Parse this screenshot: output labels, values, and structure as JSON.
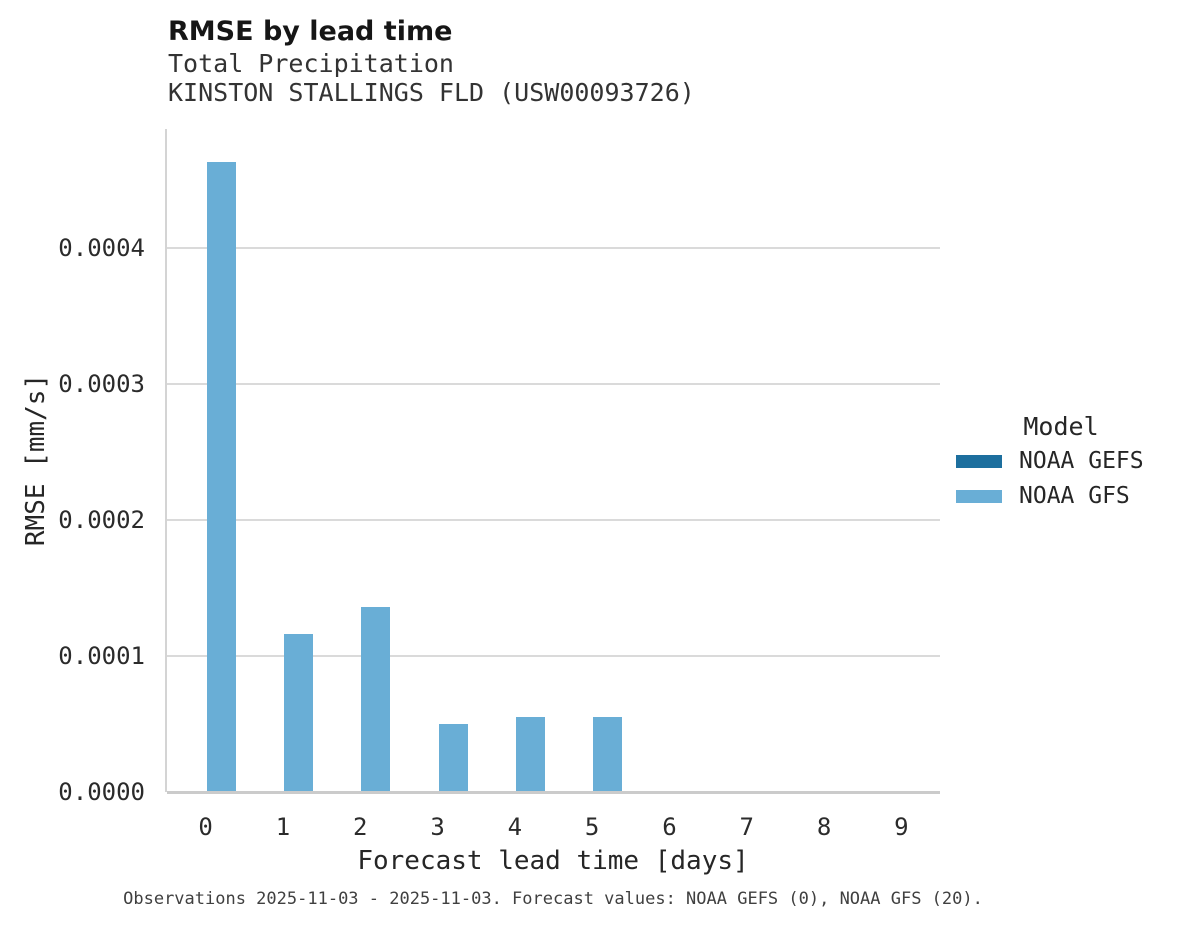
{
  "figure": {
    "title": "RMSE by lead time",
    "subtitle1": "Total Precipitation",
    "subtitle2": "KINSTON STALLINGS FLD (USW00093726)",
    "footnote": "Observations 2025-11-03 - 2025-11-03. Forecast values: NOAA GEFS (0), NOAA GFS (20)."
  },
  "legend": {
    "title": "Model",
    "entries": [
      {
        "label": "NOAA GEFS",
        "color": "#1d6f9e"
      },
      {
        "label": "NOAA GFS",
        "color": "#69aed6"
      }
    ]
  },
  "colors": {
    "gefs_dark_blue": "#1d6f9e",
    "gfs_light_blue": "#69aed6",
    "gridline_gray": "#dadada",
    "axis_gray": "#cbcbcb"
  },
  "chart_data": {
    "type": "bar",
    "title": "RMSE by lead time",
    "subtitle": [
      "Total Precipitation",
      "KINSTON STALLINGS FLD (USW00093726)"
    ],
    "categories": [
      "0",
      "1",
      "2",
      "3",
      "4",
      "5",
      "6",
      "7",
      "8",
      "9"
    ],
    "series": [
      {
        "name": "NOAA GEFS",
        "color": "#1d6f9e",
        "values": [
          null,
          null,
          null,
          null,
          null,
          null,
          null,
          null,
          null,
          null
        ]
      },
      {
        "name": "NOAA GFS",
        "color": "#69aed6",
        "values": [
          0.000463,
          0.0001165,
          0.0001357,
          5.01e-05,
          5.5e-05,
          5.55e-05,
          null,
          null,
          null,
          null
        ]
      }
    ],
    "xlabel": "Forecast lead time [days]",
    "ylabel": "RMSE [mm/s]",
    "ylim": [
      0,
      0.0004875
    ],
    "yticks": [
      0,
      0.0001,
      0.0002,
      0.0003,
      0.0004
    ],
    "ytick_labels": [
      "0.0000",
      "0.0001",
      "0.0002",
      "0.0003",
      "0.0004"
    ],
    "grid": "horizontal",
    "legend_title": "Model",
    "legend_position": "right"
  }
}
